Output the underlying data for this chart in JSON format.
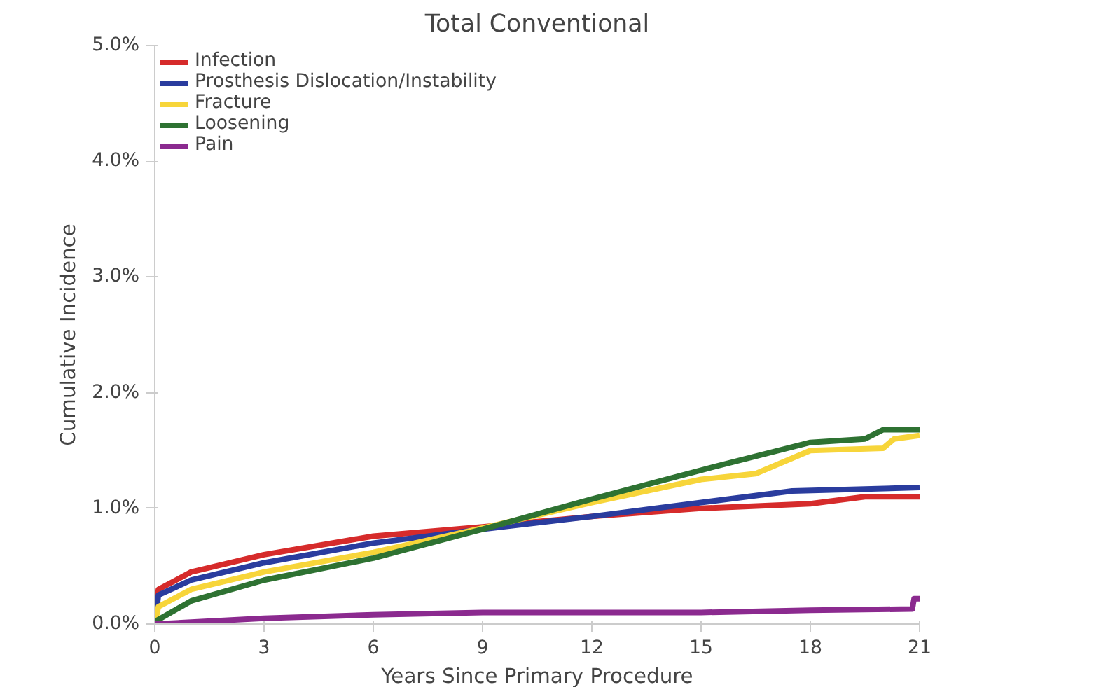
{
  "chart_data": {
    "type": "line",
    "title": "Total Conventional",
    "xlabel": "Years Since Primary Procedure",
    "ylabel": "Cumulative Incidence",
    "xlim": [
      0,
      21
    ],
    "xticks": [
      0,
      3,
      6,
      9,
      12,
      15,
      18,
      21
    ],
    "ylim": [
      0,
      5
    ],
    "yticks": [
      {
        "value": 0,
        "label": "0.0%"
      },
      {
        "value": 1,
        "label": "1.0%"
      },
      {
        "value": 2,
        "label": "2.0%"
      },
      {
        "value": 3,
        "label": "3.0%"
      },
      {
        "value": 4,
        "label": "4.0%"
      },
      {
        "value": 5,
        "label": "5.0%"
      }
    ],
    "grid": false,
    "legend": "top left",
    "marker": "none",
    "line_style": "solid",
    "series": [
      {
        "name": "Infection",
        "color": "#d62b2b",
        "x": [
          0,
          0.1,
          1,
          3,
          6,
          9,
          12,
          15,
          18,
          19.5,
          21
        ],
        "values": [
          0,
          0.3,
          0.45,
          0.6,
          0.76,
          0.84,
          0.93,
          1.0,
          1.04,
          1.1,
          1.1
        ]
      },
      {
        "name": "Prosthesis Dislocation/Instability",
        "color": "#2a3c9e",
        "x": [
          0,
          0.1,
          1,
          3,
          6,
          9,
          12,
          15,
          17.5,
          21
        ],
        "values": [
          0,
          0.25,
          0.38,
          0.53,
          0.7,
          0.82,
          0.93,
          1.05,
          1.15,
          1.18
        ]
      },
      {
        "name": "Fracture",
        "color": "#f7d53a",
        "x": [
          0,
          0.1,
          1,
          3,
          6,
          9,
          12,
          15,
          16.5,
          18,
          20,
          20.3,
          21
        ],
        "values": [
          0,
          0.15,
          0.3,
          0.45,
          0.62,
          0.83,
          1.05,
          1.25,
          1.3,
          1.5,
          1.52,
          1.6,
          1.63
        ]
      },
      {
        "name": "Loosening",
        "color": "#2e7232",
        "x": [
          0,
          1,
          3,
          6,
          9,
          12,
          15,
          18,
          19.5,
          20,
          21
        ],
        "values": [
          0.02,
          0.2,
          0.38,
          0.57,
          0.82,
          1.08,
          1.33,
          1.57,
          1.6,
          1.68,
          1.68
        ]
      },
      {
        "name": "Pain",
        "color": "#8b2a8f",
        "x": [
          0,
          3,
          6,
          9,
          15,
          18,
          20.8,
          20.85,
          21
        ],
        "values": [
          0,
          0.05,
          0.08,
          0.1,
          0.1,
          0.12,
          0.13,
          0.22,
          0.22
        ]
      }
    ]
  }
}
